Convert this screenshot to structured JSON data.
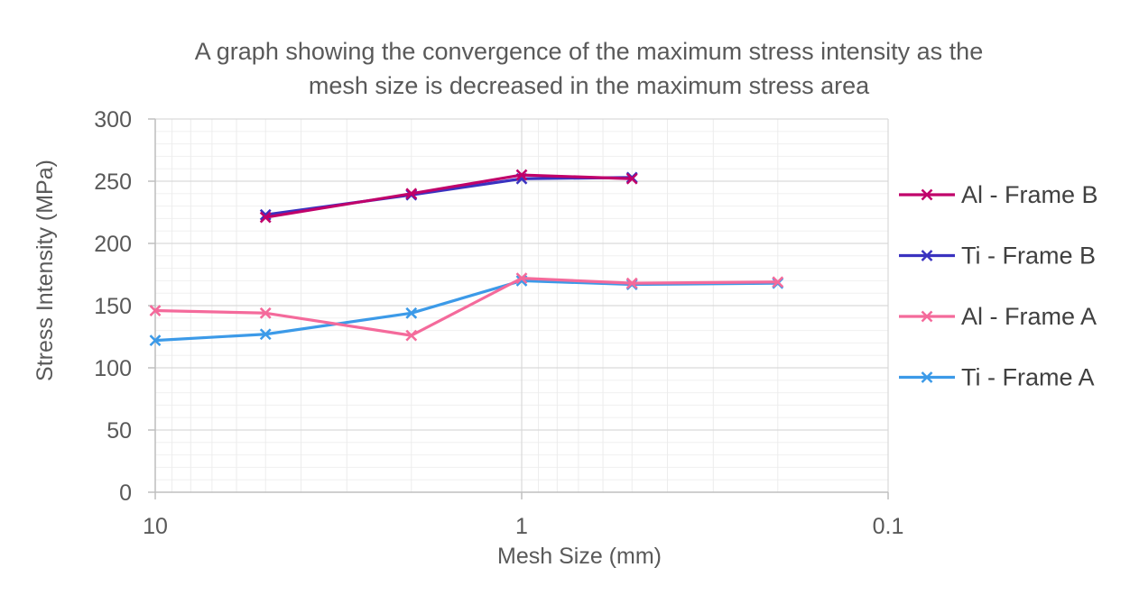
{
  "chart_data": {
    "type": "line",
    "title_lines": [
      "A graph showing the convergence of the maximum stress intensity as the",
      "mesh size is decreased in the maximum stress area"
    ],
    "xlabel": "Mesh Size (mm)",
    "ylabel": "Stress Intensity (MPa)",
    "x_scale": "log",
    "x_reversed": true,
    "xlim": [
      10,
      0.1
    ],
    "ylim": [
      0,
      300
    ],
    "x_ticks": [
      10,
      1,
      0.1
    ],
    "x_tick_labels": [
      "10",
      "1",
      "0.1"
    ],
    "y_ticks": [
      0,
      50,
      100,
      150,
      200,
      250,
      300
    ],
    "y_tick_labels": [
      "0",
      "50",
      "100",
      "150",
      "200",
      "250",
      "300"
    ],
    "grid": true,
    "legend_position": "right",
    "series": [
      {
        "name": "Al - Frame B",
        "color": "#c0006a",
        "points": [
          [
            5,
            221
          ],
          [
            2,
            240
          ],
          [
            1,
            255
          ],
          [
            0.5,
            252
          ]
        ]
      },
      {
        "name": "Ti - Frame B",
        "color": "#3a32c0",
        "points": [
          [
            5,
            223
          ],
          [
            2,
            239
          ],
          [
            1,
            252
          ],
          [
            0.5,
            253
          ]
        ]
      },
      {
        "name": "Al - Frame A",
        "color": "#f46a9b",
        "points": [
          [
            10,
            146
          ],
          [
            5,
            144
          ],
          [
            2,
            126
          ],
          [
            1,
            172
          ],
          [
            0.5,
            168
          ],
          [
            0.2,
            169
          ]
        ]
      },
      {
        "name": "Ti - Frame A",
        "color": "#3c9ae8",
        "points": [
          [
            10,
            122
          ],
          [
            5,
            127
          ],
          [
            2,
            144
          ],
          [
            1,
            170
          ],
          [
            0.5,
            167
          ],
          [
            0.2,
            168
          ]
        ]
      }
    ]
  }
}
